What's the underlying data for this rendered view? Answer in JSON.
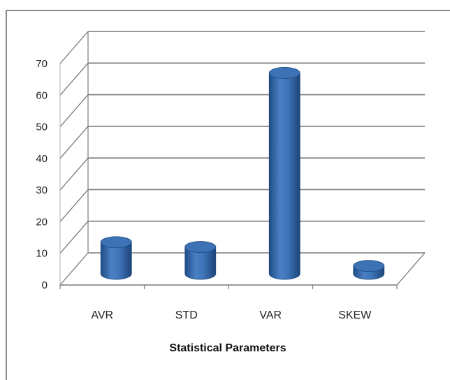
{
  "chart_data": {
    "type": "bar",
    "style": "3d-cylinder",
    "categories": [
      "AVR",
      "STD",
      "VAR",
      "SKEW"
    ],
    "values": [
      10,
      8.5,
      63.5,
      2.5
    ],
    "xlabel": "Statistical Parameters",
    "ylabel": "",
    "ylim": [
      0,
      70
    ],
    "yticks": [
      0,
      10,
      20,
      30,
      40,
      50,
      60,
      70
    ],
    "grid": true,
    "legend": "none",
    "colors": {
      "bar": "#3d73b5",
      "bar_dark": "#1e4a82",
      "bar_light": "#6d9ad2",
      "grid": "#7a7a7a"
    }
  }
}
